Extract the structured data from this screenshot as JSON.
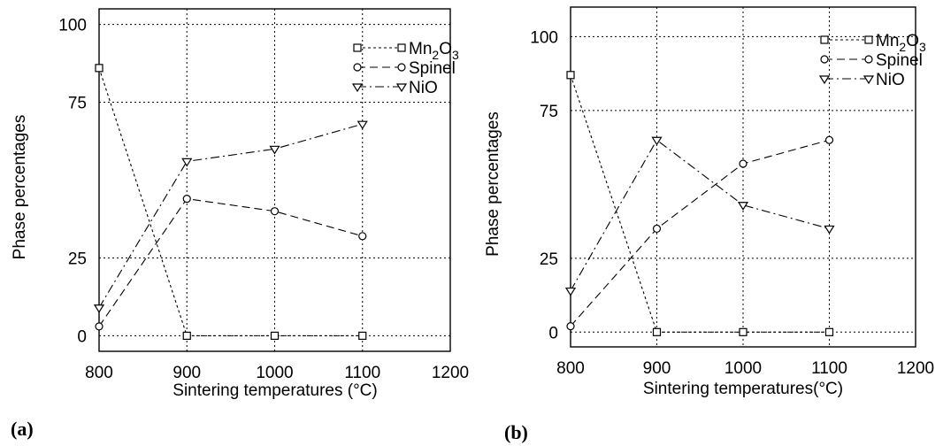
{
  "chart_data": [
    {
      "type": "line",
      "panel_label": "(a)",
      "xlabel": "Sintering temperatures (°C)",
      "ylabel": "Phase percentages",
      "xlim": [
        800,
        1200
      ],
      "ylim": [
        -5,
        105
      ],
      "xticks": [
        "800",
        "900",
        "1000",
        "1100",
        "1200"
      ],
      "yticks": [
        "0",
        "25",
        "75",
        "100"
      ],
      "ytick_values": [
        0,
        25,
        75,
        100
      ],
      "grid": true,
      "legend_position": "top-right",
      "series": [
        {
          "name": "Mn2O3",
          "name_base": "Mn",
          "name_sub1": "2",
          "name_mid": "O",
          "name_sub2": "3",
          "marker": "square",
          "dash": "3 3",
          "x": [
            800,
            900,
            1000,
            1100
          ],
          "y": [
            86,
            0,
            0,
            0
          ]
        },
        {
          "name": "Spinel",
          "marker": "circle",
          "dash": "9 5",
          "x": [
            800,
            900,
            1000,
            1100
          ],
          "y": [
            3,
            44,
            40,
            32
          ]
        },
        {
          "name": "NiO",
          "marker": "triangle",
          "dash": "10 4 2 4",
          "x": [
            800,
            900,
            1000,
            1100
          ],
          "y": [
            9,
            56,
            60,
            68
          ]
        }
      ]
    },
    {
      "type": "line",
      "panel_label": "(b)",
      "xlabel": "Sintering temperatures(°C)",
      "ylabel": "Phase percentages",
      "xlim": [
        800,
        1200
      ],
      "ylim": [
        -5,
        110
      ],
      "xticks": [
        "800",
        "900",
        "1000",
        "1100",
        "1200"
      ],
      "yticks": [
        "0",
        "25",
        "75",
        "100"
      ],
      "ytick_values": [
        0,
        25,
        75,
        100
      ],
      "grid": true,
      "legend_position": "top-right",
      "series": [
        {
          "name": "Mn2O3",
          "name_base": "Mn",
          "name_sub1": "2",
          "name_mid": "O",
          "name_sub2": "3",
          "marker": "square",
          "dash": "3 3",
          "x": [
            800,
            900,
            1000,
            1100
          ],
          "y": [
            87,
            0,
            0,
            0
          ]
        },
        {
          "name": "Spinel",
          "marker": "circle",
          "dash": "9 5",
          "x": [
            800,
            900,
            1000,
            1100
          ],
          "y": [
            2,
            35,
            57,
            65
          ]
        },
        {
          "name": "NiO",
          "marker": "triangle",
          "dash": "10 4 2 4",
          "x": [
            800,
            900,
            1000,
            1100
          ],
          "y": [
            14,
            65,
            43,
            35
          ]
        }
      ]
    }
  ]
}
